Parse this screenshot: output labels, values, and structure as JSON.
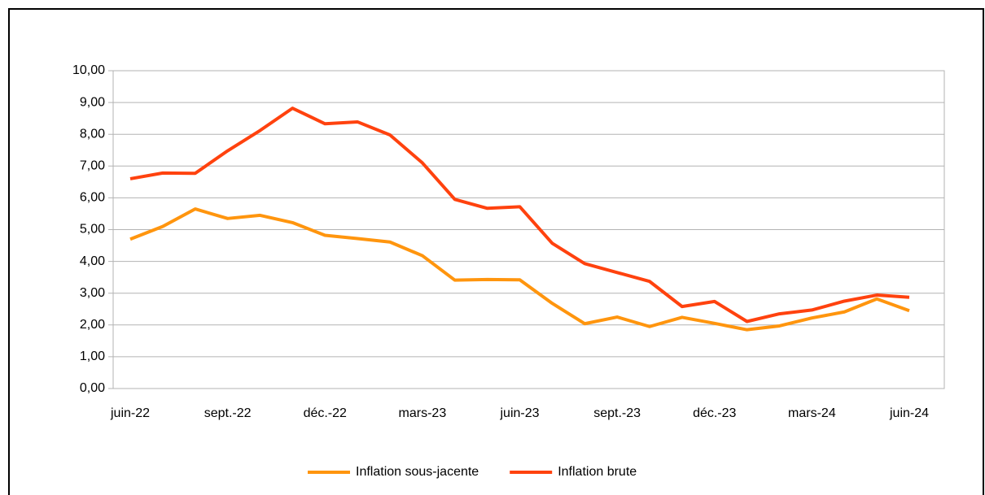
{
  "chart_data": {
    "type": "line",
    "categories": [
      "juin-22",
      null,
      null,
      "sept.-22",
      null,
      null,
      "déc.-22",
      null,
      null,
      "mars-23",
      null,
      null,
      "juin-23",
      null,
      null,
      "sept.-23",
      null,
      null,
      "déc.-23",
      null,
      null,
      "mars-24",
      null,
      null,
      "juin-24"
    ],
    "series": [
      {
        "name": "Inflation sous-jacente",
        "color": "#ff950e",
        "values": [
          4.7,
          5.1,
          5.65,
          5.35,
          5.45,
          5.22,
          4.82,
          4.72,
          4.61,
          4.18,
          3.41,
          3.43,
          3.42,
          2.68,
          2.04,
          2.25,
          1.95,
          2.24,
          2.05,
          1.85,
          1.97,
          2.22,
          2.41,
          2.82,
          2.45
        ]
      },
      {
        "name": "Inflation brute",
        "color": "#ff420e",
        "values": [
          6.6,
          6.78,
          6.77,
          7.48,
          8.12,
          8.82,
          8.33,
          8.39,
          7.98,
          7.1,
          5.95,
          5.67,
          5.72,
          4.57,
          3.93,
          3.65,
          3.37,
          2.58,
          2.74,
          2.11,
          2.35,
          2.47,
          2.75,
          2.94,
          2.87
        ]
      }
    ],
    "ylim": [
      0,
      10
    ],
    "yticks": [
      {
        "value": 0,
        "label": "0,00"
      },
      {
        "value": 1,
        "label": "1,00"
      },
      {
        "value": 2,
        "label": "2,00"
      },
      {
        "value": 3,
        "label": "3,00"
      },
      {
        "value": 4,
        "label": "4,00"
      },
      {
        "value": 5,
        "label": "5,00"
      },
      {
        "value": 6,
        "label": "6,00"
      },
      {
        "value": 7,
        "label": "7,00"
      },
      {
        "value": 8,
        "label": "8,00"
      },
      {
        "value": 9,
        "label": "9,00"
      },
      {
        "value": 10,
        "label": "10,00"
      }
    ],
    "grid": true,
    "legend": "bottom"
  }
}
